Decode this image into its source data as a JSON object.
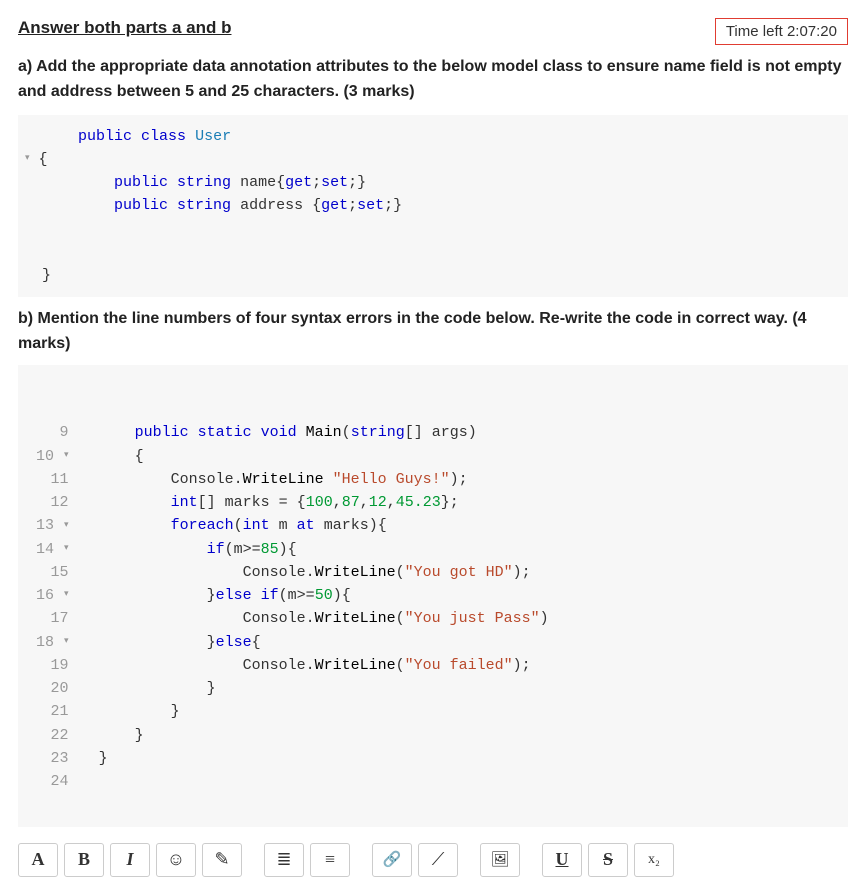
{
  "header": {
    "title": "Answer both parts a and b",
    "timer_label": "Time left 2:07:20"
  },
  "part_a": {
    "prompt": "a) Add the appropriate data annotation attributes to the below model class to ensure name field is not empty and address between 5 and 25 characters. (3 marks)",
    "code": {
      "lines": [
        {
          "indent": 1,
          "html": "<span class='kw'>public</span> <span class='kw'>class</span> <span class='type'>User</span>"
        },
        {
          "caret": true,
          "indent": 0,
          "html": "<span class='pun'>{</span>"
        },
        {
          "indent": 2,
          "html": "<span class='kw'>public</span> <span class='kw'>string</span> <span class='id'>name</span><span class='pun'>{</span><span class='kw'>get</span><span class='pun'>;</span><span class='kw'>set</span><span class='pun'>;}</span>"
        },
        {
          "indent": 2,
          "html": "<span class='kw'>public</span> <span class='kw'>string</span> <span class='id'>address</span> <span class='pun'>{</span><span class='kw'>get</span><span class='pun'>;</span><span class='kw'>set</span><span class='pun'>;}</span>"
        },
        {
          "indent": 0,
          "html": ""
        },
        {
          "indent": 0,
          "html": ""
        },
        {
          "indent": 0,
          "html": "<span class='pun'>}</span>"
        }
      ]
    }
  },
  "part_b": {
    "prompt": "b) Mention the line numbers of four syntax errors in the code below. Re-write the code in correct way. (4 marks)",
    "code": {
      "indent_unit": "    ",
      "lines": [
        {
          "n": "9",
          "caret": false,
          "indent": 0,
          "html": "<span class='kw'>public</span> <span class='kw'>static</span> <span class='kw'>void</span> <span class='fn'>Main</span><span class='pun'>(</span><span class='kw'>string</span><span class='pun'>[]</span> <span class='id'>args</span><span class='pun'>)</span>"
        },
        {
          "n": "10",
          "caret": true,
          "indent": 0,
          "html": "<span class='pun'>{</span>"
        },
        {
          "n": "11",
          "caret": false,
          "indent": 1,
          "html": "<span class='id'>Console</span><span class='pun'>.</span><span class='fn'>WriteLine</span> <span class='str'>\"Hello Guys!\"</span><span class='pun'>);</span>"
        },
        {
          "n": "12",
          "caret": false,
          "indent": 1,
          "html": "<span class='kw'>int</span><span class='pun'>[]</span> <span class='id'>marks</span> <span class='pun'>=</span> <span class='pun'>{</span><span class='num'>100</span><span class='pun'>,</span><span class='num'>87</span><span class='pun'>,</span><span class='num'>12</span><span class='pun'>,</span><span class='num'>45.23</span><span class='pun'>};</span>"
        },
        {
          "n": "13",
          "caret": true,
          "indent": 1,
          "html": "<span class='kw'>foreach</span><span class='pun'>(</span><span class='kw'>int</span> <span class='id'>m</span> <span class='kw'>at</span> <span class='id'>marks</span><span class='pun'>){</span>"
        },
        {
          "n": "14",
          "caret": true,
          "indent": 2,
          "html": "<span class='kw'>if</span><span class='pun'>(</span><span class='id'>m</span><span class='pun'>&gt;=</span><span class='num'>85</span><span class='pun'>){</span>"
        },
        {
          "n": "15",
          "caret": false,
          "indent": 3,
          "html": "<span class='id'>Console</span><span class='pun'>.</span><span class='fn'>WriteLine</span><span class='pun'>(</span><span class='str'>\"You got HD\"</span><span class='pun'>);</span>"
        },
        {
          "n": "16",
          "caret": true,
          "indent": 2,
          "html": "<span class='pun'>}</span><span class='kw'>else</span> <span class='kw'>if</span><span class='pun'>(</span><span class='id'>m</span><span class='pun'>&gt;=</span><span class='num'>50</span><span class='pun'>){</span>"
        },
        {
          "n": "17",
          "caret": false,
          "indent": 3,
          "html": "<span class='id'>Console</span><span class='pun'>.</span><span class='fn'>WriteLine</span><span class='pun'>(</span><span class='str'>\"You just Pass\"</span><span class='pun'>)</span>"
        },
        {
          "n": "18",
          "caret": true,
          "indent": 2,
          "html": "<span class='pun'>}</span><span class='kw'>else</span><span class='pun'>{</span>"
        },
        {
          "n": "19",
          "caret": false,
          "indent": 3,
          "html": "<span class='id'>Console</span><span class='pun'>.</span><span class='fn'>WriteLine</span><span class='pun'>(</span><span class='str'>\"You failed\"</span><span class='pun'>);</span>"
        },
        {
          "n": "20",
          "caret": false,
          "indent": 2,
          "html": "<span class='pun'>}</span>"
        },
        {
          "n": "21",
          "caret": false,
          "indent": 1,
          "html": "<span class='pun'>}</span>"
        },
        {
          "n": "22",
          "caret": false,
          "indent": 0,
          "html": "<span class='pun'>}</span>"
        },
        {
          "n": "23",
          "caret": false,
          "indent": -1,
          "html": "<span class='pun'>}</span>"
        },
        {
          "n": "24",
          "caret": false,
          "indent": 0,
          "html": ""
        }
      ]
    }
  },
  "toolbar": {
    "buttons": [
      {
        "name": "font-family-btn",
        "label": "A",
        "style": "font-family:serif;"
      },
      {
        "name": "bold-btn",
        "label": "B",
        "style": ""
      },
      {
        "name": "italic-btn",
        "label": "I",
        "style": "font-style:italic;font-family:serif;"
      },
      {
        "name": "emoticon-btn",
        "label": "☺",
        "style": "font-weight:400;"
      },
      {
        "name": "highlight-btn",
        "label": "✎",
        "style": "font-weight:400;"
      },
      {
        "sep": true
      },
      {
        "name": "bullet-list-btn",
        "label": "≣",
        "style": "font-weight:400;"
      },
      {
        "name": "number-list-btn",
        "label": "≡",
        "style": "font-weight:400;"
      },
      {
        "sep": true
      },
      {
        "name": "link-btn",
        "label": "🔗",
        "style": "font-weight:400;font-size:15px;"
      },
      {
        "name": "unlink-btn",
        "label": "⟋",
        "style": "font-weight:400;"
      },
      {
        "sep": true
      },
      {
        "name": "image-btn",
        "label": "🖼",
        "style": "font-weight:400;font-size:15px;"
      },
      {
        "sep": true
      },
      {
        "name": "underline-btn",
        "label": "U",
        "class": "sc-underline"
      },
      {
        "name": "strike-btn",
        "label": "S",
        "class": "sc-strike"
      },
      {
        "name": "subscript-btn",
        "label": "x₂",
        "style": "font-weight:400;font-size:14px;"
      }
    ]
  },
  "colors": {
    "keyword": "#0000cc",
    "type": "#1a7db5",
    "string": "#b94a2c",
    "number": "#009933",
    "gutter": "#999999",
    "code_bg": "#f7f7f7",
    "timer_border": "#e03c31"
  }
}
